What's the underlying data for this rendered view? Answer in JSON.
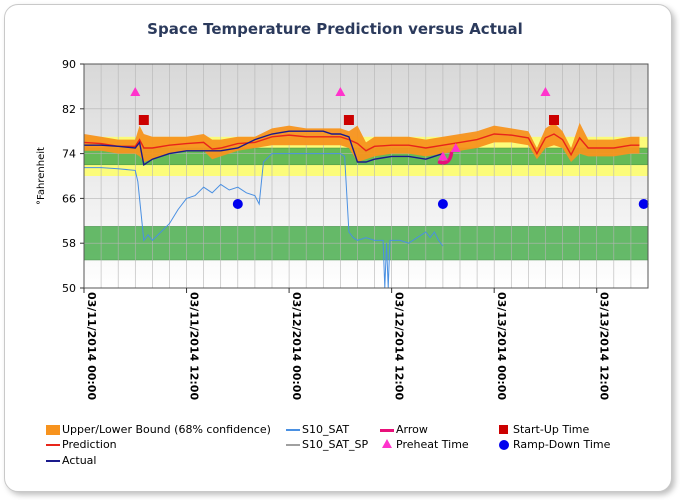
{
  "chart_data": {
    "type": "line",
    "title": "Space Temperature Prediction versus Actual",
    "xlabel": "",
    "ylabel": "°Fahrenheit",
    "ylim": [
      50,
      90
    ],
    "yticks": [
      50,
      58,
      66,
      74,
      82,
      90
    ],
    "xlim": [
      0,
      66
    ],
    "xticks": [
      {
        "x": 0,
        "label": "03/11/2014 00:00"
      },
      {
        "x": 12,
        "label": "03/11/2014 12:00"
      },
      {
        "x": 24,
        "label": "03/12/2014 00:00"
      },
      {
        "x": 36,
        "label": "03/12/2014 12:00"
      },
      {
        "x": 48,
        "label": "03/13/2014 00:00"
      },
      {
        "x": 60,
        "label": "03/13/2014 12:00"
      }
    ],
    "grid": true,
    "bands": [
      {
        "from": 70,
        "to": 77,
        "color": "#ffff66"
      },
      {
        "from": 72,
        "to": 75,
        "color": "#4caf50"
      },
      {
        "from": 55,
        "to": 61,
        "color": "#4caf50"
      }
    ],
    "series": [
      {
        "name": "Upper/Lower Bound (68% confidence)",
        "kind": "band",
        "color": "#f7931e",
        "x": [
          0,
          2,
          4,
          6,
          6.5,
          7,
          8,
          10,
          12,
          14,
          15,
          16,
          18,
          20,
          22,
          24,
          26,
          28,
          30,
          31,
          32,
          33,
          34,
          36,
          38,
          40,
          42,
          44,
          46,
          48,
          50,
          52,
          53,
          54,
          55,
          56,
          57,
          58,
          59,
          60,
          62,
          64,
          65
        ],
        "upper": [
          77.5,
          77,
          76.5,
          76.5,
          79,
          77.5,
          77,
          77,
          77,
          77.5,
          76.5,
          76.5,
          77,
          77,
          78.5,
          79,
          78.5,
          78.5,
          78.5,
          78,
          79,
          76,
          77,
          77,
          77,
          76.5,
          77,
          77.5,
          78,
          79,
          78.5,
          78,
          75,
          78.5,
          79.5,
          78,
          75,
          79.5,
          76.5,
          76.5,
          76.5,
          77,
          77
        ],
        "lower": [
          74.5,
          74.5,
          74,
          74,
          73.5,
          72.5,
          73,
          74,
          74.5,
          74.5,
          73,
          73.5,
          74.5,
          75,
          75.5,
          75.5,
          75.5,
          75.5,
          75.5,
          75,
          72.5,
          73,
          73.5,
          74,
          74,
          73.5,
          74,
          74.5,
          75,
          76,
          76,
          75.5,
          73,
          75,
          75.5,
          75,
          72.5,
          74,
          73.5,
          73.5,
          73.5,
          74,
          74
        ]
      },
      {
        "name": "Prediction",
        "color": "#e8251a",
        "x": [
          0,
          2,
          4,
          6,
          6.5,
          7,
          8,
          10,
          12,
          14,
          15,
          16,
          18,
          20,
          22,
          24,
          26,
          28,
          30,
          31,
          32,
          33,
          34,
          36,
          38,
          40,
          42,
          44,
          46,
          48,
          50,
          52,
          53,
          54,
          55,
          56,
          57,
          58,
          59,
          60,
          62,
          64,
          65
        ],
        "y": [
          76,
          75.8,
          75.3,
          75.3,
          76.5,
          75,
          75,
          75.5,
          75.8,
          76,
          74.8,
          75,
          75.8,
          76,
          77,
          77.3,
          77,
          77,
          77,
          76.5,
          75.8,
          74.5,
          75.3,
          75.5,
          75.5,
          75,
          75.5,
          76,
          76.5,
          77.5,
          77.3,
          76.8,
          74,
          76.8,
          77.5,
          76.5,
          73.8,
          76.8,
          75,
          75,
          75,
          75.5,
          75.5
        ]
      },
      {
        "name": "Actual",
        "color": "#1a1a8c",
        "x": [
          0,
          2,
          4,
          6,
          6.5,
          7,
          8,
          10,
          12,
          14,
          16,
          18,
          20,
          22,
          24,
          26,
          28,
          29,
          30,
          31,
          32,
          33,
          34,
          36,
          38,
          40,
          42
        ],
        "y": [
          75.5,
          75.5,
          75.3,
          75,
          76,
          72,
          73,
          74,
          74.5,
          74.5,
          74.5,
          75,
          76.5,
          77.5,
          78,
          78,
          78,
          77.5,
          77.5,
          77,
          72.5,
          72.5,
          73,
          73.5,
          73.5,
          73,
          74
        ]
      },
      {
        "name": "S10_SAT",
        "color": "#4a90e2",
        "x": [
          0,
          2,
          4,
          6,
          6.3,
          7,
          7.5,
          8,
          9,
          10,
          11,
          12,
          13,
          14,
          15,
          16,
          17,
          18,
          19,
          20,
          20.5,
          21,
          22,
          24,
          26,
          28,
          30,
          30.5,
          31,
          31.5,
          32,
          33,
          34,
          35,
          35.2,
          35.4,
          35.6,
          35.8,
          36,
          37,
          38,
          39,
          40,
          40.5,
          41,
          41.5,
          42
        ],
        "y": [
          71.5,
          71.5,
          71.3,
          71,
          69,
          58.5,
          59.5,
          58.5,
          60,
          61.5,
          64,
          66,
          66.5,
          68,
          67,
          68.5,
          67.5,
          68,
          67,
          66.5,
          65,
          72.5,
          74,
          74,
          74,
          74,
          74,
          73.5,
          60,
          59,
          58.5,
          59,
          58.5,
          58.5,
          50,
          58,
          50,
          58.5,
          58.5,
          58.5,
          58,
          59,
          60,
          59,
          60,
          58.5,
          57.5
        ]
      },
      {
        "name": "S10_SAT_SP",
        "color": "#a0a0a0",
        "x": [],
        "y": []
      }
    ],
    "markers": [
      {
        "name": "Arrow",
        "color": "#e8107a",
        "shape": "arrow",
        "points": [
          {
            "x": 42.3,
            "y": 73
          }
        ]
      },
      {
        "name": "Start-Up Time",
        "color": "#cc0000",
        "shape": "square",
        "points": [
          {
            "x": 7,
            "y": 80
          },
          {
            "x": 31,
            "y": 80
          },
          {
            "x": 55,
            "y": 80
          }
        ]
      },
      {
        "name": "Preheat Time",
        "color": "#ff33cc",
        "shape": "triangle",
        "points": [
          {
            "x": 6,
            "y": 85
          },
          {
            "x": 30,
            "y": 85
          },
          {
            "x": 54,
            "y": 85
          },
          {
            "x": 42,
            "y": 73.5
          },
          {
            "x": 43.5,
            "y": 75
          }
        ]
      },
      {
        "name": "Ramp-Down Time",
        "color": "#0000ee",
        "shape": "circle",
        "points": [
          {
            "x": 18,
            "y": 65
          },
          {
            "x": 42,
            "y": 65
          },
          {
            "x": 65.5,
            "y": 65
          }
        ]
      }
    ],
    "legend": {
      "placement": "bottom",
      "entries": [
        {
          "label": "Upper/Lower Bound (68% confidence)",
          "kind": "fill",
          "color": "#f7931e"
        },
        {
          "label": "Prediction",
          "kind": "line",
          "color": "#e8251a"
        },
        {
          "label": "Actual",
          "kind": "line",
          "color": "#1a1a8c"
        },
        {
          "label": "S10_SAT",
          "kind": "line",
          "color": "#4a90e2"
        },
        {
          "label": "S10_SAT_SP",
          "kind": "line",
          "color": "#a0a0a0"
        },
        {
          "label": "Arrow",
          "kind": "arrow",
          "color": "#e8107a"
        },
        {
          "label": "Preheat Time",
          "kind": "triangle",
          "color": "#ff33cc"
        },
        {
          "label": "Start-Up Time",
          "kind": "square",
          "color": "#cc0000"
        },
        {
          "label": "Ramp-Down Time",
          "kind": "circle",
          "color": "#0000ee"
        }
      ]
    }
  }
}
